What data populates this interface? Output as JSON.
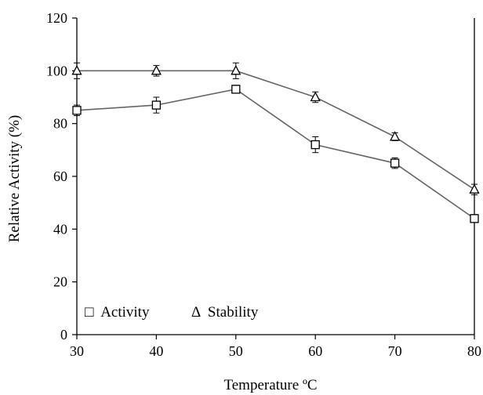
{
  "chart_data": {
    "type": "line",
    "title": "",
    "xlabel": "Temperature ºC",
    "ylabel": "Relative Activity (%)",
    "xlim": [
      30,
      80
    ],
    "ylim": [
      0,
      120
    ],
    "x_ticks": [
      30,
      40,
      50,
      60,
      70,
      80
    ],
    "y_ticks": [
      0,
      20,
      40,
      60,
      80,
      100,
      120
    ],
    "grid": false,
    "legend_position": "bottom-left",
    "x": [
      30,
      40,
      50,
      60,
      70,
      80
    ],
    "series": [
      {
        "name": "Activity",
        "marker": "square",
        "legend_symbol": "□",
        "values": [
          85,
          87,
          93,
          72,
          65,
          44
        ],
        "errors": [
          2,
          3,
          1.5,
          3,
          2,
          1.5
        ]
      },
      {
        "name": "Stability",
        "marker": "triangle",
        "legend_symbol": "Δ",
        "values": [
          100,
          100,
          100,
          90,
          75,
          55
        ],
        "errors": [
          3,
          2,
          3,
          2,
          1.5,
          2
        ]
      }
    ],
    "colors": {
      "line": "#666666",
      "marker_stroke": "#000000",
      "axis": "#000000"
    }
  }
}
